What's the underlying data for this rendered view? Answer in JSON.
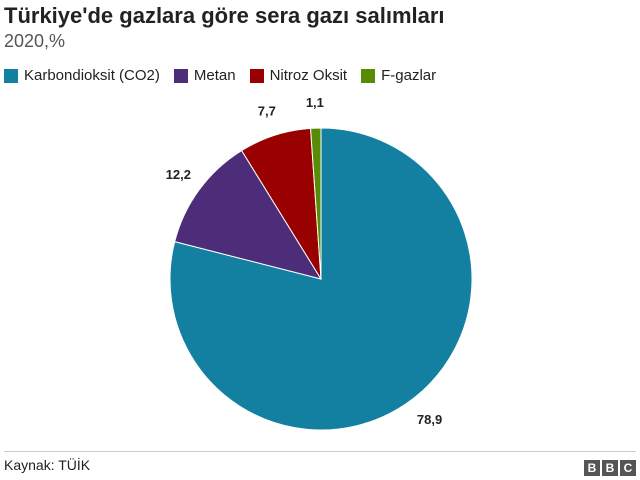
{
  "title": "Türkiye'de gazlara göre sera gazı salımları",
  "subtitle": "2020,%",
  "source": "Kaynak: TÜİK",
  "logo": {
    "letters": [
      "B",
      "B",
      "C"
    ]
  },
  "chart_data": {
    "type": "pie",
    "categories": [
      "Karbondioksit (CO2)",
      "Metan",
      "Nitroz Oksit",
      "F-gazlar"
    ],
    "values": [
      78.9,
      12.2,
      7.7,
      1.1
    ],
    "labels": [
      "78,9",
      "12,2",
      "7,7",
      "1,1"
    ],
    "colors": [
      "#1380a1",
      "#4d2c7a",
      "#990000",
      "#588c07"
    ],
    "legend_placement": "top-left",
    "start": "12 o'clock",
    "direction": "clockwise"
  }
}
